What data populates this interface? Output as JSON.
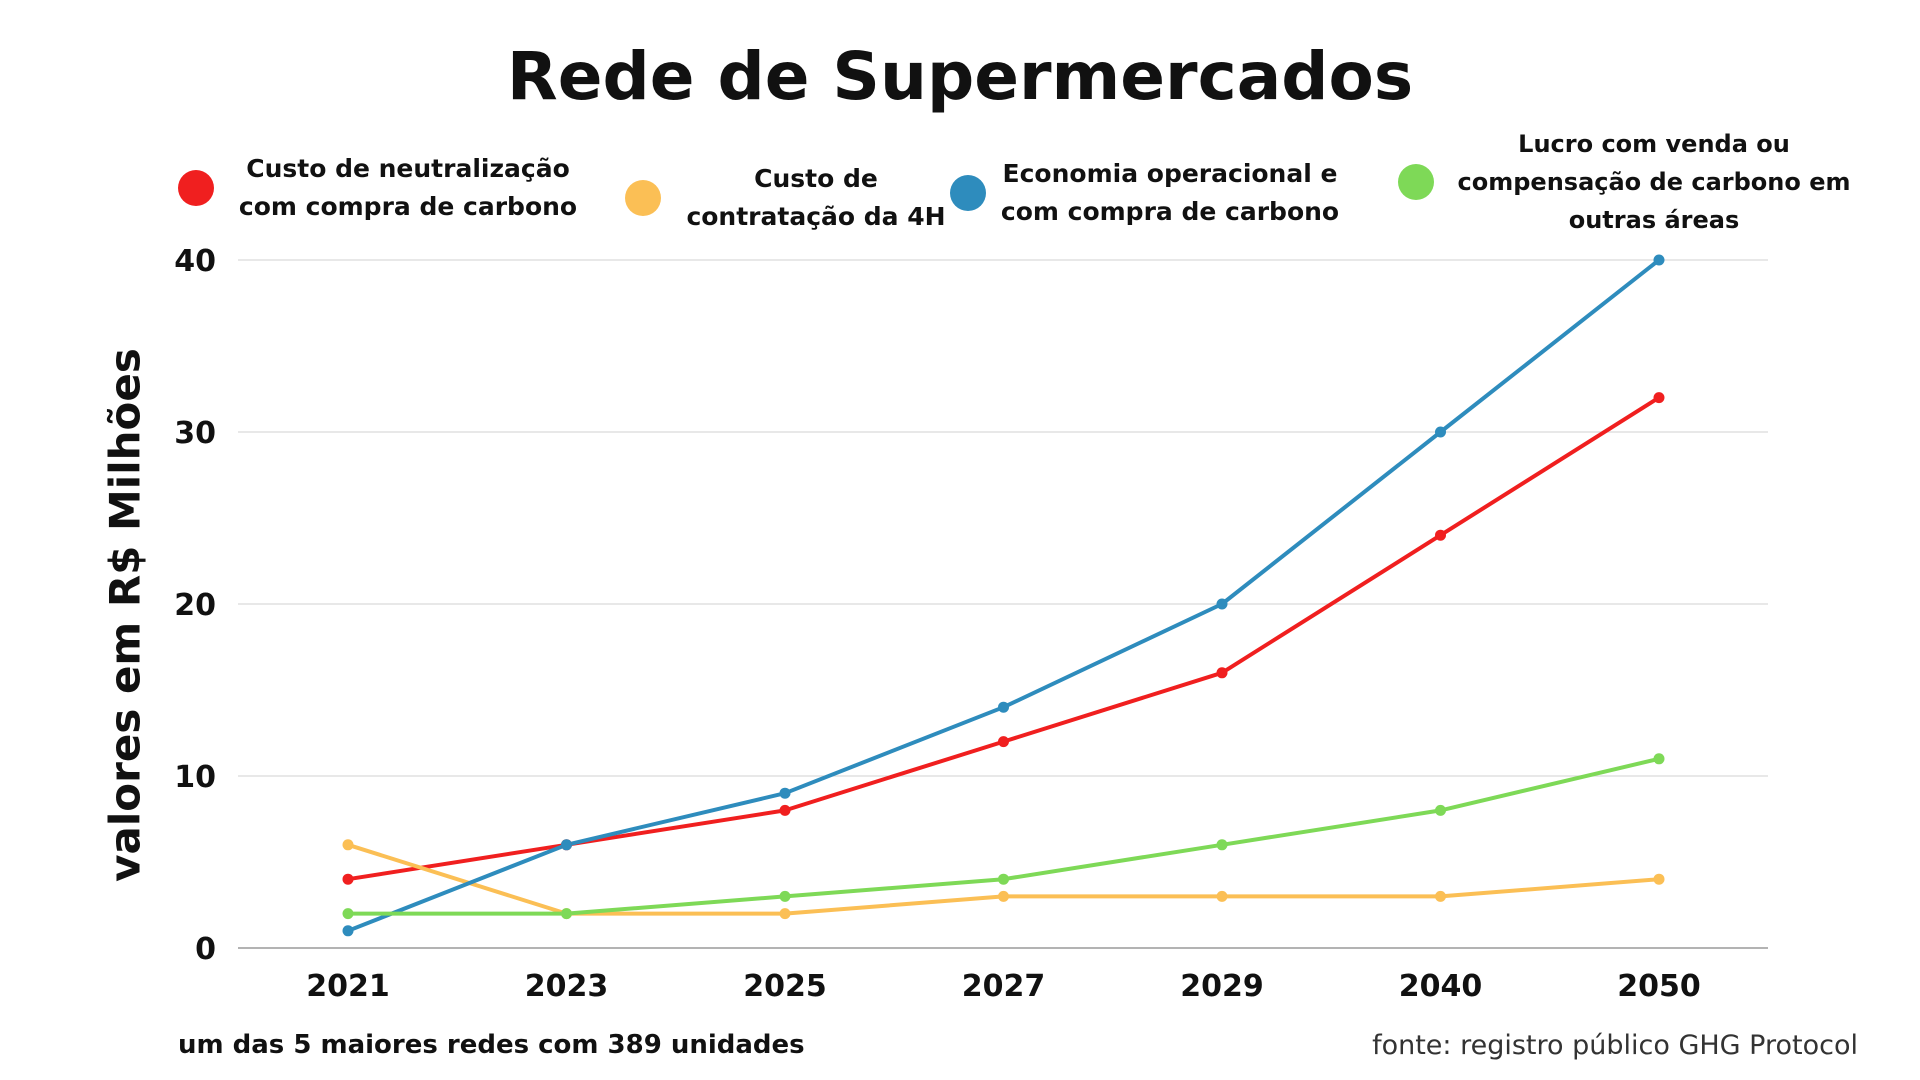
{
  "chart_data": {
    "type": "line",
    "title": "Rede de Supermercados",
    "ylabel": "valores em R$ Milhões",
    "xlabel": "",
    "categories": [
      "2021",
      "2023",
      "2025",
      "2027",
      "2029",
      "2040",
      "2050"
    ],
    "ylim": [
      0,
      40
    ],
    "yticks": [
      0,
      10,
      20,
      30,
      40
    ],
    "grid": true,
    "legend_position": "top",
    "series": [
      {
        "name": "Custo de neutralização com compra de carbono",
        "color": "#f01f1f",
        "values": [
          4,
          6,
          8,
          12,
          16,
          24,
          32
        ]
      },
      {
        "name": "Custo de contratação da 4H",
        "color": "#fbbf55",
        "values": [
          6,
          2,
          2,
          3,
          3,
          3,
          4
        ]
      },
      {
        "name": "Economia operacional e com compra de carbono",
        "color": "#2e8cbd",
        "values": [
          1,
          6,
          9,
          14,
          20,
          30,
          40
        ]
      },
      {
        "name": "Lucro com venda ou compensação de carbono em outras áreas",
        "color": "#7ed957",
        "values": [
          2,
          2,
          3,
          4,
          6,
          8,
          11
        ]
      }
    ]
  },
  "legend": [
    {
      "line1": "Custo de neutralização",
      "line2": "com compra de carbono",
      "line3": ""
    },
    {
      "line1": "Custo de",
      "line2": "contratação da 4H",
      "line3": ""
    },
    {
      "line1": "Economia operacional e",
      "line2": "com compra de carbono",
      "line3": ""
    },
    {
      "line1": "Lucro com venda ou",
      "line2": "compensação de carbono em",
      "line3": "outras áreas"
    }
  ],
  "footnote": "um das 5 maiores redes com 389 unidades",
  "source": "fonte: registro público GHG Protocol"
}
